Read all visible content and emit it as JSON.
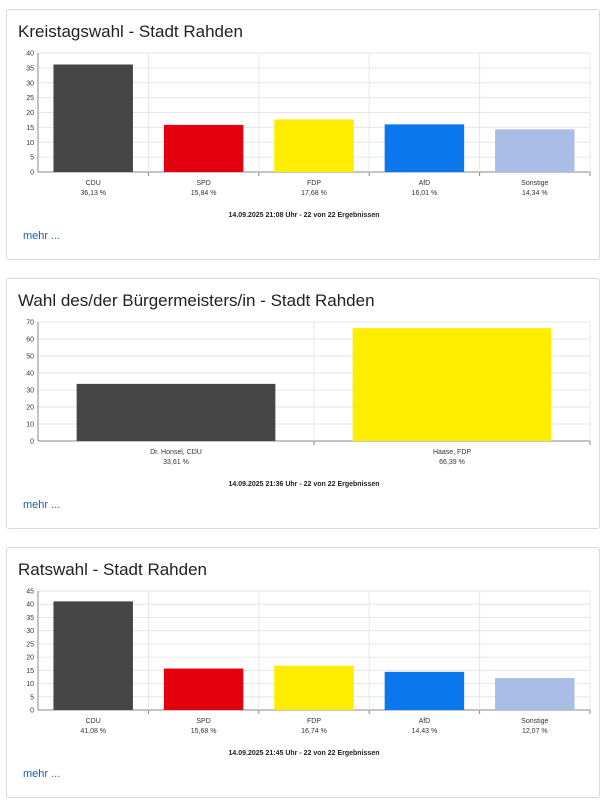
{
  "more_label": "mehr ...",
  "chart_data": [
    {
      "type": "bar",
      "title": "Kreistagswahl - Stadt Rahden",
      "categories": [
        "CDU",
        "SPD",
        "FDP",
        "AfD",
        "Sonstige"
      ],
      "values": [
        36.13,
        15.84,
        17.68,
        16.01,
        14.34
      ],
      "value_labels": [
        "36,13 %",
        "15,84 %",
        "17,68 %",
        "16,01 %",
        "14,34 %"
      ],
      "colors": [
        "#464646",
        "#e3000f",
        "#ffed00",
        "#0a77ec",
        "#a9bde6"
      ],
      "ylim": [
        0,
        40
      ],
      "yticks": [
        0,
        5,
        10,
        15,
        20,
        25,
        30,
        35,
        40
      ],
      "grid": true,
      "footer": "14.09.2025 21:08 Uhr - 22 von 22 Ergebnissen"
    },
    {
      "type": "bar",
      "title": "Wahl des/der Bürgermeisters/in - Stadt Rahden",
      "categories": [
        "Dr. Honsel, CDU",
        "Haase, FDP"
      ],
      "values": [
        33.61,
        66.39
      ],
      "value_labels": [
        "33,61 %",
        "66,39 %"
      ],
      "colors": [
        "#464646",
        "#ffed00"
      ],
      "ylim": [
        0,
        70
      ],
      "yticks": [
        0,
        10,
        20,
        30,
        40,
        50,
        60,
        70
      ],
      "grid": true,
      "footer": "14.09.2025 21:36 Uhr - 22 von 22 Ergebnissen"
    },
    {
      "type": "bar",
      "title": "Ratswahl - Stadt Rahden",
      "categories": [
        "CDU",
        "SPD",
        "FDP",
        "AfD",
        "Sonstige"
      ],
      "values": [
        41.08,
        15.68,
        16.74,
        14.43,
        12.07
      ],
      "value_labels": [
        "41,08 %",
        "15,68 %",
        "16,74 %",
        "14,43 %",
        "12,07 %"
      ],
      "colors": [
        "#464646",
        "#e3000f",
        "#ffed00",
        "#0a77ec",
        "#a9bde6"
      ],
      "ylim": [
        0,
        45
      ],
      "yticks": [
        0,
        5,
        10,
        15,
        20,
        25,
        30,
        35,
        40,
        45
      ],
      "grid": true,
      "footer": "14.09.2025 21:45 Uhr - 22 von 22 Ergebnissen"
    }
  ]
}
